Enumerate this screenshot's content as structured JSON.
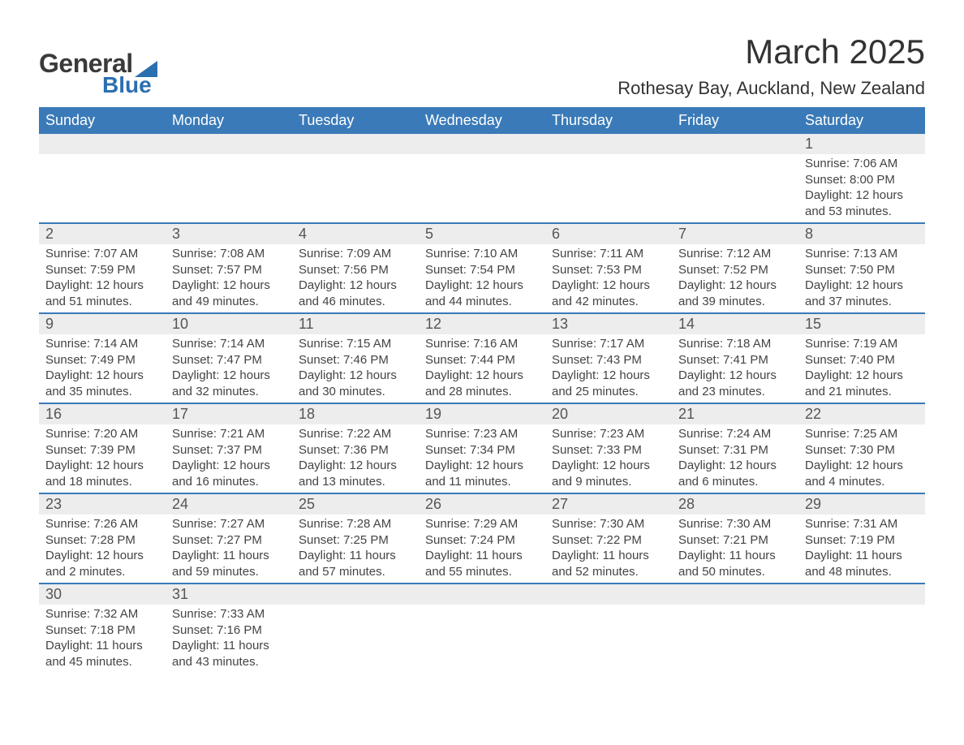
{
  "logo": {
    "text1": "General",
    "text2": "Blue"
  },
  "title": "March 2025",
  "location": "Rothesay Bay, Auckland, New Zealand",
  "colors": {
    "header_bg": "#3a7ab8",
    "header_text": "#ffffff",
    "daynum_bg": "#ededed",
    "row_border": "#3a7ab8",
    "logo_accent": "#2b6fb0",
    "body_text": "#444444"
  },
  "dayNames": [
    "Sunday",
    "Monday",
    "Tuesday",
    "Wednesday",
    "Thursday",
    "Friday",
    "Saturday"
  ],
  "weeks": [
    [
      null,
      null,
      null,
      null,
      null,
      null,
      {
        "day": "1",
        "sunrise": "Sunrise: 7:06 AM",
        "sunset": "Sunset: 8:00 PM",
        "daylight": "Daylight: 12 hours and 53 minutes."
      }
    ],
    [
      {
        "day": "2",
        "sunrise": "Sunrise: 7:07 AM",
        "sunset": "Sunset: 7:59 PM",
        "daylight": "Daylight: 12 hours and 51 minutes."
      },
      {
        "day": "3",
        "sunrise": "Sunrise: 7:08 AM",
        "sunset": "Sunset: 7:57 PM",
        "daylight": "Daylight: 12 hours and 49 minutes."
      },
      {
        "day": "4",
        "sunrise": "Sunrise: 7:09 AM",
        "sunset": "Sunset: 7:56 PM",
        "daylight": "Daylight: 12 hours and 46 minutes."
      },
      {
        "day": "5",
        "sunrise": "Sunrise: 7:10 AM",
        "sunset": "Sunset: 7:54 PM",
        "daylight": "Daylight: 12 hours and 44 minutes."
      },
      {
        "day": "6",
        "sunrise": "Sunrise: 7:11 AM",
        "sunset": "Sunset: 7:53 PM",
        "daylight": "Daylight: 12 hours and 42 minutes."
      },
      {
        "day": "7",
        "sunrise": "Sunrise: 7:12 AM",
        "sunset": "Sunset: 7:52 PM",
        "daylight": "Daylight: 12 hours and 39 minutes."
      },
      {
        "day": "8",
        "sunrise": "Sunrise: 7:13 AM",
        "sunset": "Sunset: 7:50 PM",
        "daylight": "Daylight: 12 hours and 37 minutes."
      }
    ],
    [
      {
        "day": "9",
        "sunrise": "Sunrise: 7:14 AM",
        "sunset": "Sunset: 7:49 PM",
        "daylight": "Daylight: 12 hours and 35 minutes."
      },
      {
        "day": "10",
        "sunrise": "Sunrise: 7:14 AM",
        "sunset": "Sunset: 7:47 PM",
        "daylight": "Daylight: 12 hours and 32 minutes."
      },
      {
        "day": "11",
        "sunrise": "Sunrise: 7:15 AM",
        "sunset": "Sunset: 7:46 PM",
        "daylight": "Daylight: 12 hours and 30 minutes."
      },
      {
        "day": "12",
        "sunrise": "Sunrise: 7:16 AM",
        "sunset": "Sunset: 7:44 PM",
        "daylight": "Daylight: 12 hours and 28 minutes."
      },
      {
        "day": "13",
        "sunrise": "Sunrise: 7:17 AM",
        "sunset": "Sunset: 7:43 PM",
        "daylight": "Daylight: 12 hours and 25 minutes."
      },
      {
        "day": "14",
        "sunrise": "Sunrise: 7:18 AM",
        "sunset": "Sunset: 7:41 PM",
        "daylight": "Daylight: 12 hours and 23 minutes."
      },
      {
        "day": "15",
        "sunrise": "Sunrise: 7:19 AM",
        "sunset": "Sunset: 7:40 PM",
        "daylight": "Daylight: 12 hours and 21 minutes."
      }
    ],
    [
      {
        "day": "16",
        "sunrise": "Sunrise: 7:20 AM",
        "sunset": "Sunset: 7:39 PM",
        "daylight": "Daylight: 12 hours and 18 minutes."
      },
      {
        "day": "17",
        "sunrise": "Sunrise: 7:21 AM",
        "sunset": "Sunset: 7:37 PM",
        "daylight": "Daylight: 12 hours and 16 minutes."
      },
      {
        "day": "18",
        "sunrise": "Sunrise: 7:22 AM",
        "sunset": "Sunset: 7:36 PM",
        "daylight": "Daylight: 12 hours and 13 minutes."
      },
      {
        "day": "19",
        "sunrise": "Sunrise: 7:23 AM",
        "sunset": "Sunset: 7:34 PM",
        "daylight": "Daylight: 12 hours and 11 minutes."
      },
      {
        "day": "20",
        "sunrise": "Sunrise: 7:23 AM",
        "sunset": "Sunset: 7:33 PM",
        "daylight": "Daylight: 12 hours and 9 minutes."
      },
      {
        "day": "21",
        "sunrise": "Sunrise: 7:24 AM",
        "sunset": "Sunset: 7:31 PM",
        "daylight": "Daylight: 12 hours and 6 minutes."
      },
      {
        "day": "22",
        "sunrise": "Sunrise: 7:25 AM",
        "sunset": "Sunset: 7:30 PM",
        "daylight": "Daylight: 12 hours and 4 minutes."
      }
    ],
    [
      {
        "day": "23",
        "sunrise": "Sunrise: 7:26 AM",
        "sunset": "Sunset: 7:28 PM",
        "daylight": "Daylight: 12 hours and 2 minutes."
      },
      {
        "day": "24",
        "sunrise": "Sunrise: 7:27 AM",
        "sunset": "Sunset: 7:27 PM",
        "daylight": "Daylight: 11 hours and 59 minutes."
      },
      {
        "day": "25",
        "sunrise": "Sunrise: 7:28 AM",
        "sunset": "Sunset: 7:25 PM",
        "daylight": "Daylight: 11 hours and 57 minutes."
      },
      {
        "day": "26",
        "sunrise": "Sunrise: 7:29 AM",
        "sunset": "Sunset: 7:24 PM",
        "daylight": "Daylight: 11 hours and 55 minutes."
      },
      {
        "day": "27",
        "sunrise": "Sunrise: 7:30 AM",
        "sunset": "Sunset: 7:22 PM",
        "daylight": "Daylight: 11 hours and 52 minutes."
      },
      {
        "day": "28",
        "sunrise": "Sunrise: 7:30 AM",
        "sunset": "Sunset: 7:21 PM",
        "daylight": "Daylight: 11 hours and 50 minutes."
      },
      {
        "day": "29",
        "sunrise": "Sunrise: 7:31 AM",
        "sunset": "Sunset: 7:19 PM",
        "daylight": "Daylight: 11 hours and 48 minutes."
      }
    ],
    [
      {
        "day": "30",
        "sunrise": "Sunrise: 7:32 AM",
        "sunset": "Sunset: 7:18 PM",
        "daylight": "Daylight: 11 hours and 45 minutes."
      },
      {
        "day": "31",
        "sunrise": "Sunrise: 7:33 AM",
        "sunset": "Sunset: 7:16 PM",
        "daylight": "Daylight: 11 hours and 43 minutes."
      },
      null,
      null,
      null,
      null,
      null
    ]
  ]
}
